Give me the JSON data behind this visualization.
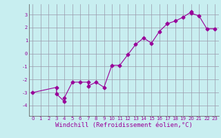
{
  "xlabel": "Windchill (Refroidissement éolien,°C)",
  "background_color": "#c8eef0",
  "line_color": "#990099",
  "grid_color": "#9999aa",
  "xlim": [
    -0.5,
    23.5
  ],
  "ylim": [
    -4.8,
    3.8
  ],
  "yticks": [
    -4,
    -3,
    -2,
    -1,
    0,
    1,
    2,
    3
  ],
  "xticks": [
    0,
    1,
    2,
    3,
    4,
    5,
    6,
    7,
    8,
    9,
    10,
    11,
    12,
    13,
    14,
    15,
    16,
    17,
    18,
    19,
    20,
    21,
    22,
    23
  ],
  "x": [
    0,
    3,
    3,
    4,
    4,
    5,
    6,
    7,
    7,
    8,
    9,
    10,
    11,
    12,
    13,
    14,
    15,
    16,
    17,
    17,
    18,
    19,
    20,
    20,
    21,
    22,
    23
  ],
  "y": [
    -3.0,
    -2.6,
    -3.1,
    -3.7,
    -3.4,
    -2.2,
    -2.2,
    -2.2,
    -2.5,
    -2.2,
    -2.6,
    -0.9,
    -0.9,
    -0.1,
    0.7,
    1.2,
    0.8,
    1.7,
    2.3,
    2.3,
    2.5,
    2.8,
    3.2,
    3.1,
    2.9,
    1.9,
    1.9
  ],
  "marker": "D",
  "marker_size": 2.5,
  "line_width": 0.8,
  "tick_label_fontsize": 5.0,
  "xlabel_fontsize": 6.5,
  "spine_color": "#666666"
}
